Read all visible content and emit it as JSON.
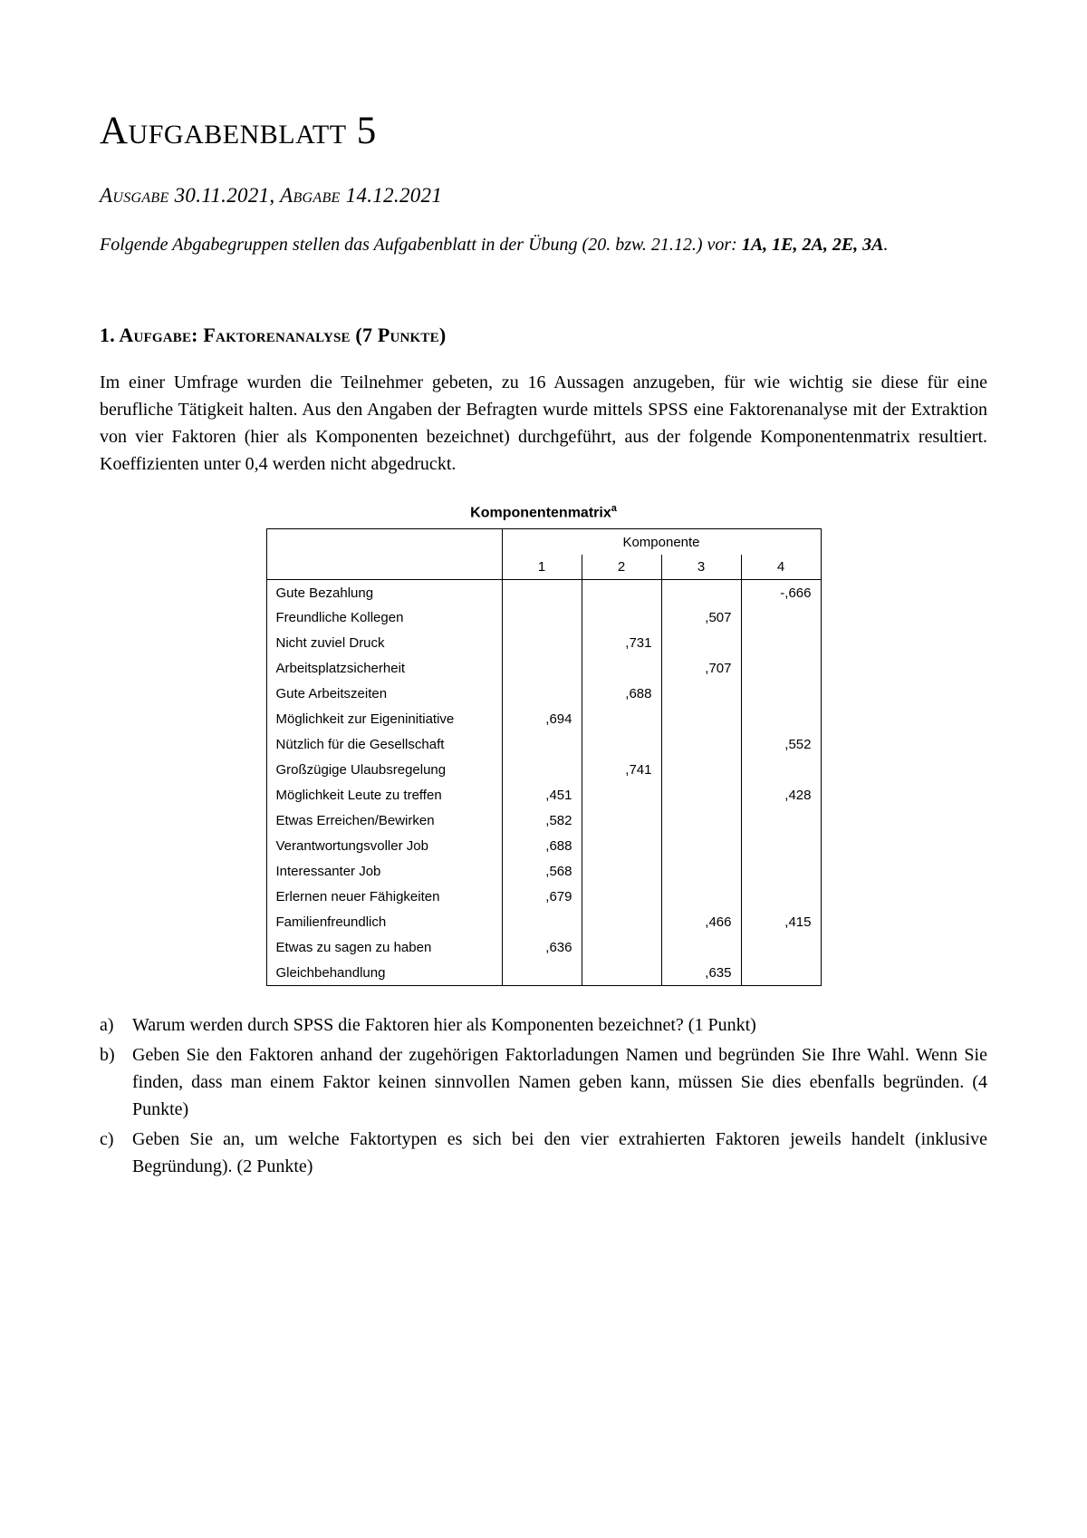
{
  "page_title": "Aufgabenblatt 5",
  "subtitle": "Ausgabe 30.11.2021, Abgabe 14.12.2021",
  "intro_text": "Folgende Abgabegruppen stellen das Aufgabenblatt in der Übung (20. bzw. 21.12.) vor: ",
  "intro_groups": "1A, 1E, 2A, 2E, 3A",
  "intro_period": ".",
  "section_heading": "1.  Aufgabe: Faktorenanalyse (7 Punkte)",
  "section_body": "Im einer Umfrage wurden die Teilnehmer gebeten, zu 16 Aussagen anzugeben, für wie wichtig sie diese für eine berufliche Tätigkeit halten. Aus den Angaben der Befragten wurde mittels SPSS eine Faktorenanalyse mit der Extraktion von vier Faktoren (hier als Komponenten bezeichnet) durchgeführt, aus der folgende Komponentenmatrix resultiert. Koeffizienten unter 0,4 werden nicht abgedruckt.",
  "table": {
    "title": "Komponentenmatrix",
    "title_sup": "a",
    "group_header": "Komponente",
    "col_headers": [
      "1",
      "2",
      "3",
      "4"
    ],
    "rows": [
      {
        "label": "Gute Bezahlung",
        "vals": [
          "",
          "",
          "",
          "-,666"
        ]
      },
      {
        "label": "Freundliche Kollegen",
        "vals": [
          "",
          "",
          ",507",
          ""
        ]
      },
      {
        "label": "Nicht zuviel Druck",
        "vals": [
          "",
          ",731",
          "",
          ""
        ]
      },
      {
        "label": "Arbeitsplatzsicherheit",
        "vals": [
          "",
          "",
          ",707",
          ""
        ]
      },
      {
        "label": "Gute Arbeitszeiten",
        "vals": [
          "",
          ",688",
          "",
          ""
        ]
      },
      {
        "label": "Möglichkeit zur Eigeninitiative",
        "vals": [
          ",694",
          "",
          "",
          ""
        ]
      },
      {
        "label": "Nützlich für die Gesellschaft",
        "vals": [
          "",
          "",
          "",
          ",552"
        ]
      },
      {
        "label": "Großzügige Ulaubsregelung",
        "vals": [
          "",
          ",741",
          "",
          ""
        ]
      },
      {
        "label": "Möglichkeit Leute zu treffen",
        "vals": [
          ",451",
          "",
          "",
          ",428"
        ]
      },
      {
        "label": "Etwas Erreichen/Bewirken",
        "vals": [
          ",582",
          "",
          "",
          ""
        ]
      },
      {
        "label": "Verantwortungsvoller Job",
        "vals": [
          ",688",
          "",
          "",
          ""
        ]
      },
      {
        "label": "Interessanter Job",
        "vals": [
          ",568",
          "",
          "",
          ""
        ]
      },
      {
        "label": "Erlernen neuer Fähigkeiten",
        "vals": [
          ",679",
          "",
          "",
          ""
        ]
      },
      {
        "label": "Familienfreundlich",
        "vals": [
          "",
          "",
          ",466",
          ",415"
        ]
      },
      {
        "label": "Etwas zu sagen zu haben",
        "vals": [
          ",636",
          "",
          "",
          ""
        ]
      },
      {
        "label": "Gleichbehandlung",
        "vals": [
          "",
          "",
          ",635",
          ""
        ]
      }
    ],
    "font_family": "Arial",
    "border_color": "#000000"
  },
  "questions": [
    {
      "marker": "a)",
      "text": "Warum werden durch SPSS die Faktoren hier als Komponenten bezeichnet? (1 Punkt)"
    },
    {
      "marker": "b)",
      "text": "Geben Sie den Faktoren anhand der zugehörigen Faktorladungen Namen und begründen Sie Ihre Wahl. Wenn Sie finden, dass man einem Faktor keinen sinnvollen Namen geben kann, müssen Sie dies ebenfalls begründen. (4 Punkte)"
    },
    {
      "marker": "c)",
      "text": "Geben Sie an, um welche Faktortypen es sich bei den vier extrahierten Faktoren jeweils handelt (inklusive Begründung). (2 Punkte)"
    }
  ],
  "colors": {
    "background": "#ffffff",
    "text": "#000000"
  }
}
